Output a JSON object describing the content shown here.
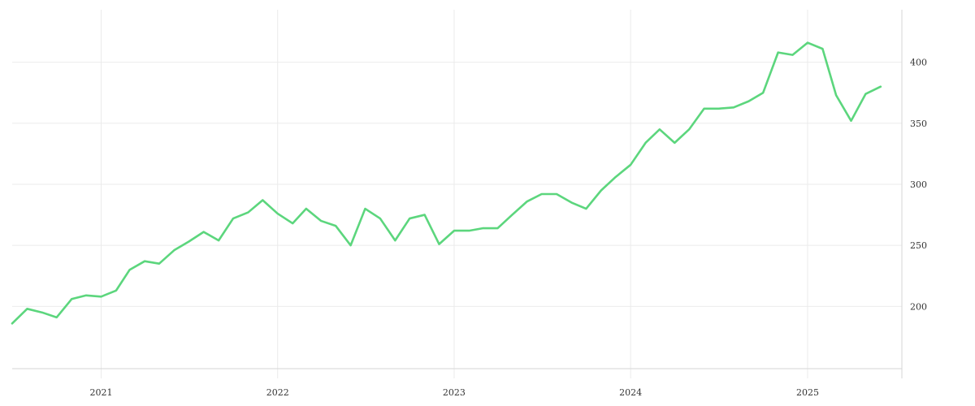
{
  "chart_data": {
    "type": "line",
    "title": "",
    "xlabel": "",
    "ylabel": "",
    "x_ticks": [
      "2021",
      "2022",
      "2023",
      "2024",
      "2025"
    ],
    "y_ticks": [
      200,
      250,
      300,
      350,
      400
    ],
    "xlim": [
      "2020-07-01",
      "2025-07-15"
    ],
    "ylim": [
      145,
      443
    ],
    "grid": true,
    "legend": "none",
    "y_axis_side": "right",
    "line_color": "#5cd67d",
    "series": [
      {
        "x": [
          "2020-07-01",
          "2020-08-01",
          "2020-09-01",
          "2020-10-01",
          "2020-11-01",
          "2020-12-01",
          "2021-01-01",
          "2021-02-01",
          "2021-03-01",
          "2021-04-01",
          "2021-05-01",
          "2021-06-01",
          "2021-07-01",
          "2021-08-01",
          "2021-09-01",
          "2021-10-01",
          "2021-11-01",
          "2021-12-01",
          "2022-01-01",
          "2022-02-01",
          "2022-03-01",
          "2022-04-01",
          "2022-05-01",
          "2022-06-01",
          "2022-07-01",
          "2022-08-01",
          "2022-09-01",
          "2022-10-01",
          "2022-11-01",
          "2022-12-01",
          "2023-01-01",
          "2023-02-01",
          "2023-03-01",
          "2023-04-01",
          "2023-05-01",
          "2023-06-01",
          "2023-07-01",
          "2023-08-01",
          "2023-09-01",
          "2023-10-01",
          "2023-11-01",
          "2023-12-01",
          "2024-01-01",
          "2024-02-01",
          "2024-03-01",
          "2024-04-01",
          "2024-05-01",
          "2024-06-01",
          "2024-07-01",
          "2024-08-01",
          "2024-09-01",
          "2024-10-01",
          "2024-11-01",
          "2024-12-01",
          "2025-01-01",
          "2025-02-01",
          "2025-03-01",
          "2025-04-01",
          "2025-05-01",
          "2025-06-01"
        ],
        "values": [
          186,
          198,
          195,
          191,
          206,
          209,
          208,
          213,
          230,
          237,
          235,
          246,
          253,
          261,
          254,
          272,
          277,
          287,
          276,
          268,
          280,
          270,
          266,
          250,
          280,
          272,
          254,
          272,
          275,
          251,
          262,
          262,
          264,
          264,
          275,
          286,
          292,
          292,
          285,
          280,
          295,
          306,
          316,
          334,
          345,
          334,
          345,
          362,
          362,
          363,
          368,
          375,
          408,
          406,
          416,
          411,
          373,
          352,
          374,
          380
        ]
      }
    ]
  }
}
